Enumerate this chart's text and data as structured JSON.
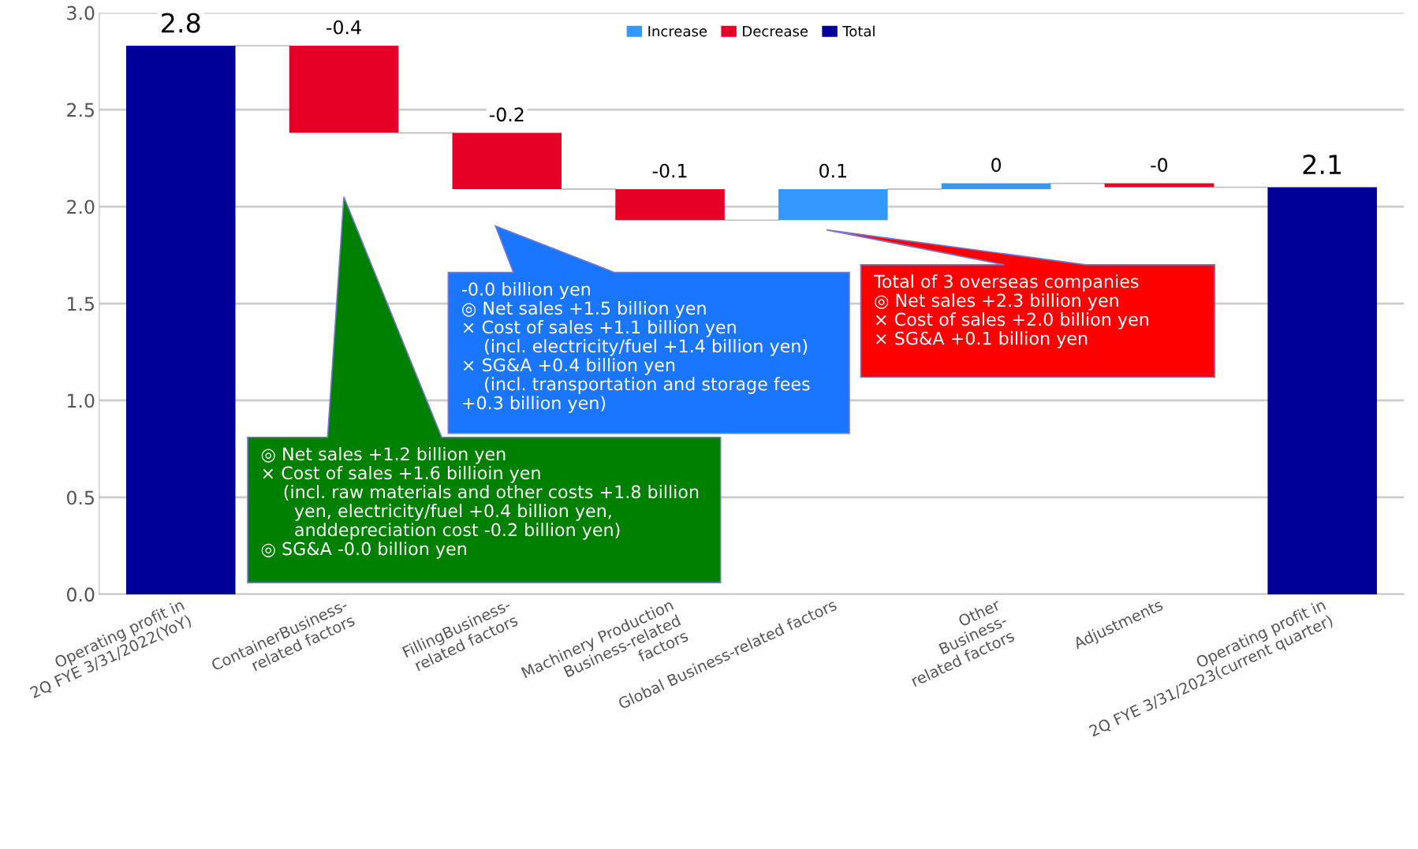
{
  "chart_data": {
    "type": "bar",
    "categories": [
      "Operating profit in\n2Q FYE 3/31/2022(YoY)",
      "ContainerBusiness-\nrelated factors",
      "FillingBusiness-\nrelated factors",
      "Machinery Production\nBusiness-related\nfactors",
      "Global Business-related factors",
      "Other\nBusiness-\nrelated factors",
      "Adjustments",
      "Operating profit in\n2Q FYE 3/31/2023(current quarter)"
    ],
    "series": [
      {
        "name": "Increase",
        "color": "#3399ff",
        "base": [
          null,
          null,
          null,
          null,
          1.93,
          2.09,
          null,
          null
        ],
        "values": [
          null,
          null,
          null,
          null,
          0.16,
          0.03,
          null,
          null
        ]
      },
      {
        "name": "Decrease",
        "color": "#e60026",
        "base": [
          null,
          2.83,
          2.38,
          2.09,
          null,
          null,
          2.12,
          null
        ],
        "values": [
          null,
          -0.45,
          -0.29,
          -0.16,
          null,
          null,
          -0.02,
          null
        ]
      },
      {
        "name": "Total",
        "color": "#000099",
        "values": [
          2.83,
          null,
          null,
          null,
          null,
          null,
          null,
          2.1
        ]
      }
    ],
    "value_labels": [
      "2.8",
      "-0.4",
      "-0.2",
      "-0.1",
      "0.1",
      "0",
      "-0",
      "2.1"
    ],
    "ylim": [
      0,
      3
    ],
    "yticks": [
      {
        "value": 0,
        "label": "0.0"
      },
      {
        "value": 0.5,
        "label": "0.5"
      },
      {
        "value": 1,
        "label": "1.0"
      },
      {
        "value": 1.5,
        "label": "1.5"
      },
      {
        "value": 2,
        "label": "2.0"
      },
      {
        "value": 2.5,
        "label": "2.5"
      },
      {
        "value": 3,
        "label": "3.0"
      }
    ],
    "grid": "y",
    "legend": "top",
    "annotations": [
      "◎ Net sales +1.2 billion yen\n× Cost of sales +1.6 billioin yen\n    (incl. raw materials and other costs +1.8 billion\n      yen, electricity/fuel +0.4 billion yen,\n      anddepreciation cost -0.2 billion yen)\n◎ SG&A -0.0 billion yen",
      "-0.0 billion yen\n◎ Net sales +1.5 billion yen\n× Cost of sales +1.1 billion yen\n    (incl. electricity/fuel +1.4 billion yen)\n× SG&A +0.4 billion yen\n    (incl. transportation and storage fees\n+0.3 billion yen)",
      "Total of 3 overseas companies\n◎ Net sales +2.3 billion yen\n× Cost of sales +2.0 billion yen\n× SG&A +0.1 billion yen"
    ]
  }
}
